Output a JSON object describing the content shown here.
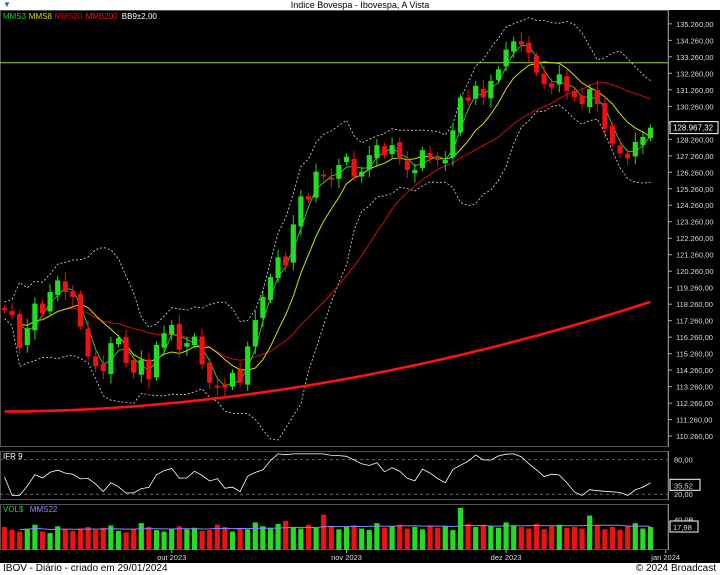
{
  "title": "Indice Bovespa - Ibovespa, A Vista",
  "footer": {
    "left": "IBOV - Diário - criado em 29/01/2024",
    "right": "© 2024 Broadcast"
  },
  "colors": {
    "up": "#22dd22",
    "down": "#ee1111",
    "mms3": "#22cc22",
    "mms8": "#dddd00",
    "mms20": "#cc1111",
    "mmb200": "#ff1111",
    "bb": "#dddddd",
    "hline": "#88dd44",
    "ifr": "#ffffff",
    "vol_avg": "#8888ff"
  },
  "chart_data": [
    {
      "type": "candlestick",
      "legend": [
        {
          "label": "MMS3",
          "color": "#22cc22"
        },
        {
          "label": "MMS8",
          "color": "#dddd00"
        },
        {
          "label": "MMS20",
          "color": "#cc1111"
        },
        {
          "label": "MMB200",
          "color": "#ff1111"
        },
        {
          "label": "BB9±2,00",
          "color": "#ffffff"
        }
      ],
      "y_ticks": [
        "135.260,00",
        "134.260,00",
        "133.260,00",
        "132.260,00",
        "131.260,00",
        "130.260,00",
        "129.260,00",
        "128.260,00",
        "127.260,00",
        "126.260,00",
        "125.260,00",
        "124.260,00",
        "123.260,00",
        "122.260,00",
        "121.260,00",
        "120.260,00",
        "119.260,00",
        "118.260,00",
        "117.260,00",
        "116.260,00",
        "115.260,00",
        "114.260,00",
        "113.260,00",
        "112.260,00",
        "111.260,00",
        "110.260,00"
      ],
      "ylim": [
        109600,
        136100
      ],
      "last_value": "128.967,32",
      "reference_line": 132900,
      "x_labels": [
        {
          "label": "out 2023",
          "index": 22
        },
        {
          "label": "nov 2023",
          "index": 45
        },
        {
          "label": "dez 2023",
          "index": 66
        },
        {
          "label": "jan 2024",
          "index": 87
        }
      ],
      "closes": [
        117900,
        117600,
        115600,
        116800,
        118300,
        117700,
        119000,
        119700,
        119000,
        118700,
        116900,
        115100,
        114500,
        114200,
        115900,
        116200,
        114700,
        114100,
        114900,
        113700,
        115800,
        116500,
        117000,
        115500,
        115900,
        116300,
        114600,
        113500,
        113200,
        113200,
        114100,
        113500,
        115700,
        117300,
        118700,
        119900,
        121100,
        120600,
        123100,
        124800,
        124600,
        126300,
        126000,
        125800,
        126700,
        127200,
        126000,
        126300,
        127300,
        127900,
        127300,
        127900,
        127100,
        126400,
        126400,
        127600,
        127100,
        127000,
        127000,
        128800,
        130800,
        130600,
        131500,
        130800,
        131800,
        132500,
        133700,
        134200,
        134000,
        133500,
        132300,
        131600,
        131400,
        132200,
        131200,
        130800,
        130400,
        131300,
        130400,
        128900,
        128000,
        127400,
        127100,
        128100,
        128400,
        128967
      ],
      "volume_ticks": [
        "40,0B",
        "17,98"
      ],
      "volumes": [
        30,
        26,
        24,
        28,
        33,
        24,
        22,
        31,
        27,
        25,
        28,
        30,
        26,
        29,
        32,
        25,
        23,
        27,
        35,
        30,
        26,
        24,
        28,
        31,
        27,
        29,
        25,
        26,
        33,
        30,
        24,
        28,
        27,
        36,
        31,
        29,
        34,
        38,
        30,
        28,
        33,
        29,
        46,
        31,
        27,
        30,
        32,
        28,
        26,
        35,
        29,
        31,
        33,
        28,
        30,
        27,
        32,
        29,
        31,
        26,
        55,
        34,
        30,
        33,
        31,
        29,
        36,
        32,
        30,
        28,
        34,
        27,
        31,
        33,
        29,
        30,
        28,
        45,
        32,
        27,
        30,
        26,
        31,
        35,
        28,
        30
      ]
    },
    {
      "type": "line",
      "legend": [
        {
          "label": "IFR 9",
          "color": "#ffffff"
        }
      ],
      "y_ticks": [
        "80,00",
        "35,52",
        "20,00"
      ],
      "ylim": [
        10,
        95
      ]
    },
    {
      "type": "bar",
      "legend": [
        {
          "label": "VOL$",
          "color": "#22dd22"
        },
        {
          "label": "MMS22",
          "color": "#8888ff"
        }
      ]
    }
  ]
}
